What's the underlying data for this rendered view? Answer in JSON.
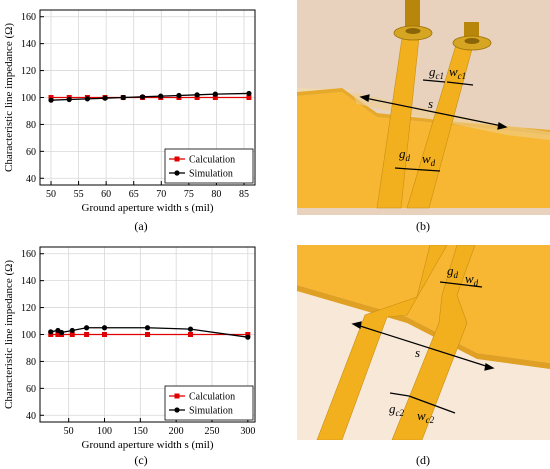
{
  "chart_data": [
    {
      "type": "line",
      "xlabel": "Ground aperture width s (mil)",
      "ylabel": "Characteristic line impedance (Ω)",
      "xlim": [
        48,
        87
      ],
      "ylim": [
        35,
        165
      ],
      "xticks": [
        50,
        55,
        60,
        65,
        70,
        75,
        80,
        85
      ],
      "yticks": [
        40,
        60,
        80,
        100,
        120,
        140,
        160
      ],
      "grid": true,
      "legend": "bottom-right",
      "x": [
        50,
        53.3,
        56.6,
        59.8,
        63.1,
        66.6,
        69.9,
        73.2,
        76.5,
        79.8,
        85.9
      ],
      "series": [
        {
          "name": "Calculation",
          "color": "#e00000",
          "marker": "square",
          "values": [
            100,
            100,
            100,
            100,
            100,
            100,
            100,
            100,
            100,
            100,
            100
          ]
        },
        {
          "name": "Simulation",
          "color": "#000000",
          "marker": "circle",
          "values": [
            98,
            98.5,
            99,
            99.5,
            100,
            100.5,
            101,
            101.5,
            102,
            102.5,
            103
          ]
        }
      ],
      "caption": "(a)"
    },
    {
      "type": "line",
      "xlabel": "Ground aperture width s (mil)",
      "ylabel": "Characteristic line impedance (Ω)",
      "xlim": [
        10,
        310
      ],
      "ylim": [
        35,
        165
      ],
      "xticks": [
        50,
        100,
        150,
        200,
        250,
        300
      ],
      "yticks": [
        40,
        60,
        80,
        100,
        120,
        140,
        160
      ],
      "grid": true,
      "legend": "bottom-right",
      "x": [
        25,
        35,
        40,
        55,
        75,
        100,
        160,
        220,
        300
      ],
      "series": [
        {
          "name": "Calculation",
          "color": "#e00000",
          "marker": "square",
          "values": [
            100,
            100,
            100,
            100,
            100,
            100,
            100,
            100,
            100
          ]
        },
        {
          "name": "Simulation",
          "color": "#000000",
          "marker": "circle",
          "values": [
            102,
            103,
            101.5,
            103,
            105,
            105,
            105,
            104,
            98
          ]
        }
      ],
      "caption": "(c)"
    }
  ],
  "diagram_b": {
    "labels": {
      "gc1_main": "g",
      "gc1_sub": "c1",
      "wc1_main": "w",
      "wc1_sub": "c1",
      "s": "s",
      "gd_main": "g",
      "gd_sub": "d",
      "wd_main": "w",
      "wd_sub": "d"
    },
    "caption": "(b)"
  },
  "diagram_d": {
    "labels": {
      "gd_main": "g",
      "gd_sub": "d",
      "wd_main": "w",
      "wd_sub": "d",
      "s": "s",
      "gc2_main": "g",
      "gc2_sub": "c2",
      "wc2_main": "w",
      "wc2_sub": "c2"
    },
    "caption": "(d)"
  },
  "colors": {
    "substrate_top": "#f2bf52",
    "substrate_side": "#f0d9b0",
    "ground": "#f7b733",
    "trace": "#f5b52a",
    "post": "#b8860b",
    "background_b": "#e8d2bd",
    "background_d": "#f8e8d8"
  }
}
